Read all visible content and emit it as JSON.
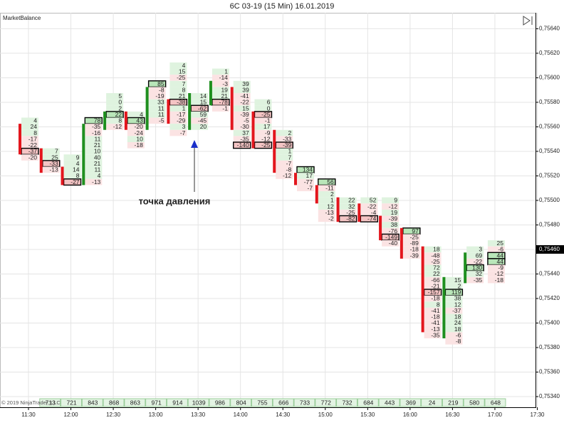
{
  "chart_data": {
    "type": "footprint",
    "title": "6C 03-19 (15 Min)  16.01.2019",
    "indicator": "MarketBalance",
    "copyright": "© 2019 NinjaTrader, LLC",
    "annotation": "точка давления",
    "ylim": [
      0.7534,
      0.75653
    ],
    "yticks": [
      {
        "value": 0.7564,
        "label": "0,75640"
      },
      {
        "value": 0.7562,
        "label": "0,75620"
      },
      {
        "value": 0.756,
        "label": "0,75600"
      },
      {
        "value": 0.7558,
        "label": "0,75580"
      },
      {
        "value": 0.7556,
        "label": "0,75560"
      },
      {
        "value": 0.7554,
        "label": "0,75540"
      },
      {
        "value": 0.7552,
        "label": "0,75520"
      },
      {
        "value": 0.755,
        "label": "0,75500"
      },
      {
        "value": 0.7548,
        "label": "0,75480"
      },
      {
        "value": 0.7544,
        "label": "0,75440"
      },
      {
        "value": 0.7542,
        "label": "0,75420"
      },
      {
        "value": 0.754,
        "label": "0,75400"
      },
      {
        "value": 0.7538,
        "label": "0,75380"
      },
      {
        "value": 0.7536,
        "label": "0,75360"
      },
      {
        "value": 0.7534,
        "label": "0,75340"
      }
    ],
    "last_price": {
      "value": 0.7546,
      "label": "0,75460"
    },
    "xticks": [
      "11:30",
      "12:00",
      "12:30",
      "13:00",
      "13:30",
      "14:00",
      "14:30",
      "15:00",
      "15:30",
      "16:00",
      "16:30",
      "17:00",
      "17:30"
    ],
    "grid": true,
    "up_color": "#1f8f1f",
    "down_color": "#e3161d",
    "positive_color": "#dff3df",
    "negative_color": "#fbe3e3",
    "positive_highlight_color": "#b9e6b9",
    "negative_highlight_color": "#f4c4c4",
    "volume_color": "#e3f3e3",
    "columns": [
      {
        "high": 0.75565,
        "low": 0.75535,
        "values": [
          4,
          24,
          8,
          -17,
          -22,
          -37,
          -20
        ],
        "highlight": [
          5
        ],
        "open": 0.7556,
        "close": 0.7554,
        "volume": null
      },
      {
        "high": 0.7554,
        "low": 0.75525,
        "values": [
          7,
          25,
          -33,
          -13
        ],
        "highlight": [
          2
        ],
        "open": 0.7554,
        "close": 0.75525,
        "volume": 713
      },
      {
        "high": 0.75535,
        "low": 0.75515,
        "values": [
          9,
          4,
          14,
          8,
          -27
        ],
        "highlight": [
          4
        ],
        "open": 0.75525,
        "close": 0.75515,
        "volume": 721
      },
      {
        "high": 0.75565,
        "low": 0.75515,
        "values": [
          78,
          -35,
          -16,
          11,
          21,
          10,
          40,
          21,
          11,
          4,
          -13
        ],
        "highlight": [
          0
        ],
        "open": 0.75515,
        "close": 0.7556,
        "volume": 843
      },
      {
        "high": 0.75585,
        "low": 0.7556,
        "values": [
          5,
          0,
          2,
          22,
          8,
          -12
        ],
        "highlight": [
          3
        ],
        "open": 0.7556,
        "close": 0.7557,
        "volume": 868
      },
      {
        "high": 0.7557,
        "low": 0.75545,
        "values": [
          4,
          43,
          -20,
          -24,
          10,
          -18
        ],
        "highlight": [
          1
        ],
        "open": 0.7557,
        "close": 0.7556,
        "volume": 863
      },
      {
        "high": 0.75595,
        "low": 0.75565,
        "values": [
          85,
          -8,
          -19,
          33,
          11,
          11,
          -5
        ],
        "highlight": [
          0
        ],
        "open": 0.7556,
        "close": 0.7559,
        "volume": 971
      },
      {
        "high": 0.7561,
        "low": 0.75555,
        "values": [
          4,
          15,
          -25,
          7,
          8,
          21,
          -38,
          1,
          -17,
          -29,
          3,
          -7
        ],
        "highlight": [
          6
        ],
        "open": 0.7558,
        "close": 0.75565,
        "volume": 914
      },
      {
        "high": 0.75585,
        "low": 0.7556,
        "values": [
          14,
          15,
          -62,
          59,
          -45,
          20
        ],
        "highlight": [
          2
        ],
        "open": 0.7556,
        "close": 0.75585,
        "volume": 1039
      },
      {
        "high": 0.75605,
        "low": 0.75575,
        "values": [
          1,
          -14,
          -3,
          19,
          21,
          -78,
          -1
        ],
        "highlight": [
          5
        ],
        "open": 0.7558,
        "close": 0.75595,
        "volume": 986
      },
      {
        "high": 0.75595,
        "low": 0.75545,
        "values": [
          39,
          39,
          -41,
          -22,
          15,
          -39,
          -5,
          -30,
          37,
          -35,
          -140
        ],
        "highlight": [
          10
        ],
        "open": 0.7559,
        "close": 0.7556,
        "volume": 804
      },
      {
        "high": 0.7558,
        "low": 0.75545,
        "values": [
          6,
          0,
          -25,
          -1,
          17,
          -9,
          -12,
          -25
        ],
        "highlight": [
          2,
          7
        ],
        "open": 0.7557,
        "close": 0.75545,
        "volume": 755
      },
      {
        "high": 0.75555,
        "low": 0.7552,
        "values": [
          2,
          -33,
          -39,
          1,
          7,
          -7,
          -8,
          -12
        ],
        "highlight": [
          2
        ],
        "open": 0.75555,
        "close": 0.75525,
        "volume": 666
      },
      {
        "high": 0.75525,
        "low": 0.7551,
        "values": [
          134,
          17,
          -77,
          -7
        ],
        "highlight": [
          0
        ],
        "open": 0.7552,
        "close": 0.75515,
        "volume": 733
      },
      {
        "high": 0.75515,
        "low": 0.75485,
        "values": [
          56,
          -11,
          2,
          1,
          12,
          -13,
          -2
        ],
        "highlight": [
          0
        ],
        "open": 0.7551,
        "close": 0.755,
        "volume": 772
      },
      {
        "high": 0.755,
        "low": 0.75485,
        "values": [
          22,
          32,
          -25,
          -82
        ],
        "highlight": [
          3
        ],
        "open": 0.755,
        "close": 0.75485,
        "volume": 732
      },
      {
        "high": 0.755,
        "low": 0.75485,
        "values": [
          52,
          -22,
          -4,
          -74
        ],
        "highlight": [
          3
        ],
        "open": 0.75495,
        "close": 0.75485,
        "volume": 684
      },
      {
        "high": 0.755,
        "low": 0.75465,
        "values": [
          9,
          -12,
          19,
          -39,
          38,
          -76,
          -149,
          -40
        ],
        "highlight": [
          6
        ],
        "open": 0.75485,
        "close": 0.7547,
        "volume": 443
      },
      {
        "high": 0.75475,
        "low": 0.75455,
        "values": [
          97,
          -25,
          -89,
          -18,
          -39
        ],
        "highlight": [
          0
        ],
        "open": 0.75475,
        "close": 0.75455,
        "volume": 369
      },
      {
        "high": 0.7546,
        "low": 0.7539,
        "values": [
          18,
          -48,
          -25,
          72,
          22,
          -66,
          -21,
          -157,
          -18,
          8,
          -41,
          -18,
          -41,
          -13,
          -35
        ],
        "highlight": [
          7
        ],
        "open": 0.7546,
        "close": 0.75395,
        "volume": 24
      },
      {
        "high": 0.75435,
        "low": 0.75385,
        "values": [
          15,
          2,
          119,
          38,
          12,
          -37,
          18,
          24,
          18,
          -6,
          -8
        ],
        "highlight": [
          2
        ],
        "open": 0.7539,
        "close": 0.75435,
        "volume": 219
      },
      {
        "high": 0.7546,
        "low": 0.75435,
        "values": [
          3,
          69,
          -22,
          130,
          32,
          -35
        ],
        "highlight": [
          3
        ],
        "open": 0.75435,
        "close": 0.75455,
        "volume": 580
      },
      {
        "high": 0.75465,
        "low": 0.75435,
        "values": [
          25,
          -6,
          44,
          44,
          -9,
          -12,
          -18
        ],
        "highlight": [
          2,
          3
        ],
        "volume": 648
      }
    ]
  }
}
